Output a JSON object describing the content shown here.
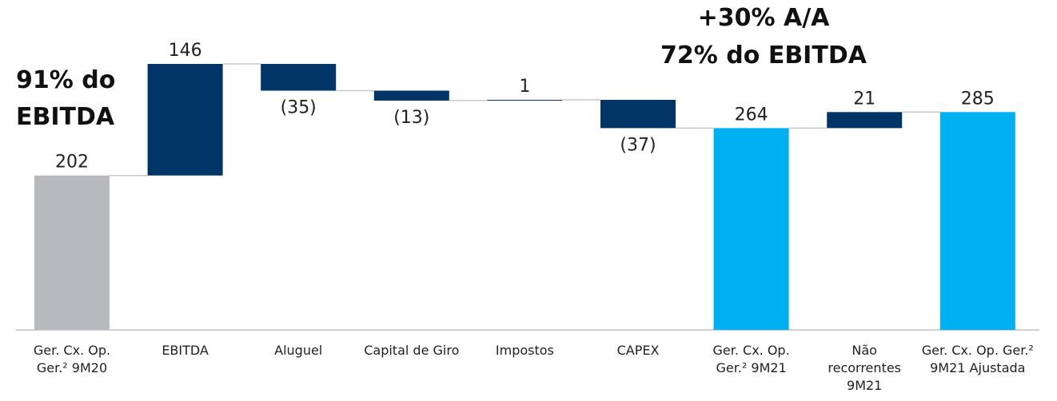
{
  "chart_data": {
    "type": "waterfall",
    "categories": [
      "Ger. Cx. Op. Ger.² 9M20",
      "EBITDA",
      "Aluguel",
      "Capital de Giro",
      "Impostos",
      "CAPEX",
      "Ger. Cx. Op. Ger.² 9M21",
      "Não recorrentes 9M21",
      "Ger. Cx. Op. Ger.² 9M21 Ajustada"
    ],
    "values": [
      202,
      146,
      -35,
      -13,
      1,
      -37,
      264,
      21,
      285
    ],
    "value_labels": [
      "202",
      "146",
      "(35)",
      "(13)",
      "1",
      "(37)",
      "264",
      "21",
      "285"
    ],
    "measure": [
      "total",
      "relative",
      "relative",
      "relative",
      "relative",
      "relative",
      "total",
      "relative",
      "total"
    ],
    "colors": [
      "#b8b9bd",
      "#023567",
      "#023567",
      "#023567",
      "#023567",
      "#023567",
      "#00b0f0",
      "#023567",
      "#00b0f0"
    ],
    "annotations": [
      "91% do EBITDA",
      "+30% A/A",
      "72% do EBITDA"
    ]
  }
}
